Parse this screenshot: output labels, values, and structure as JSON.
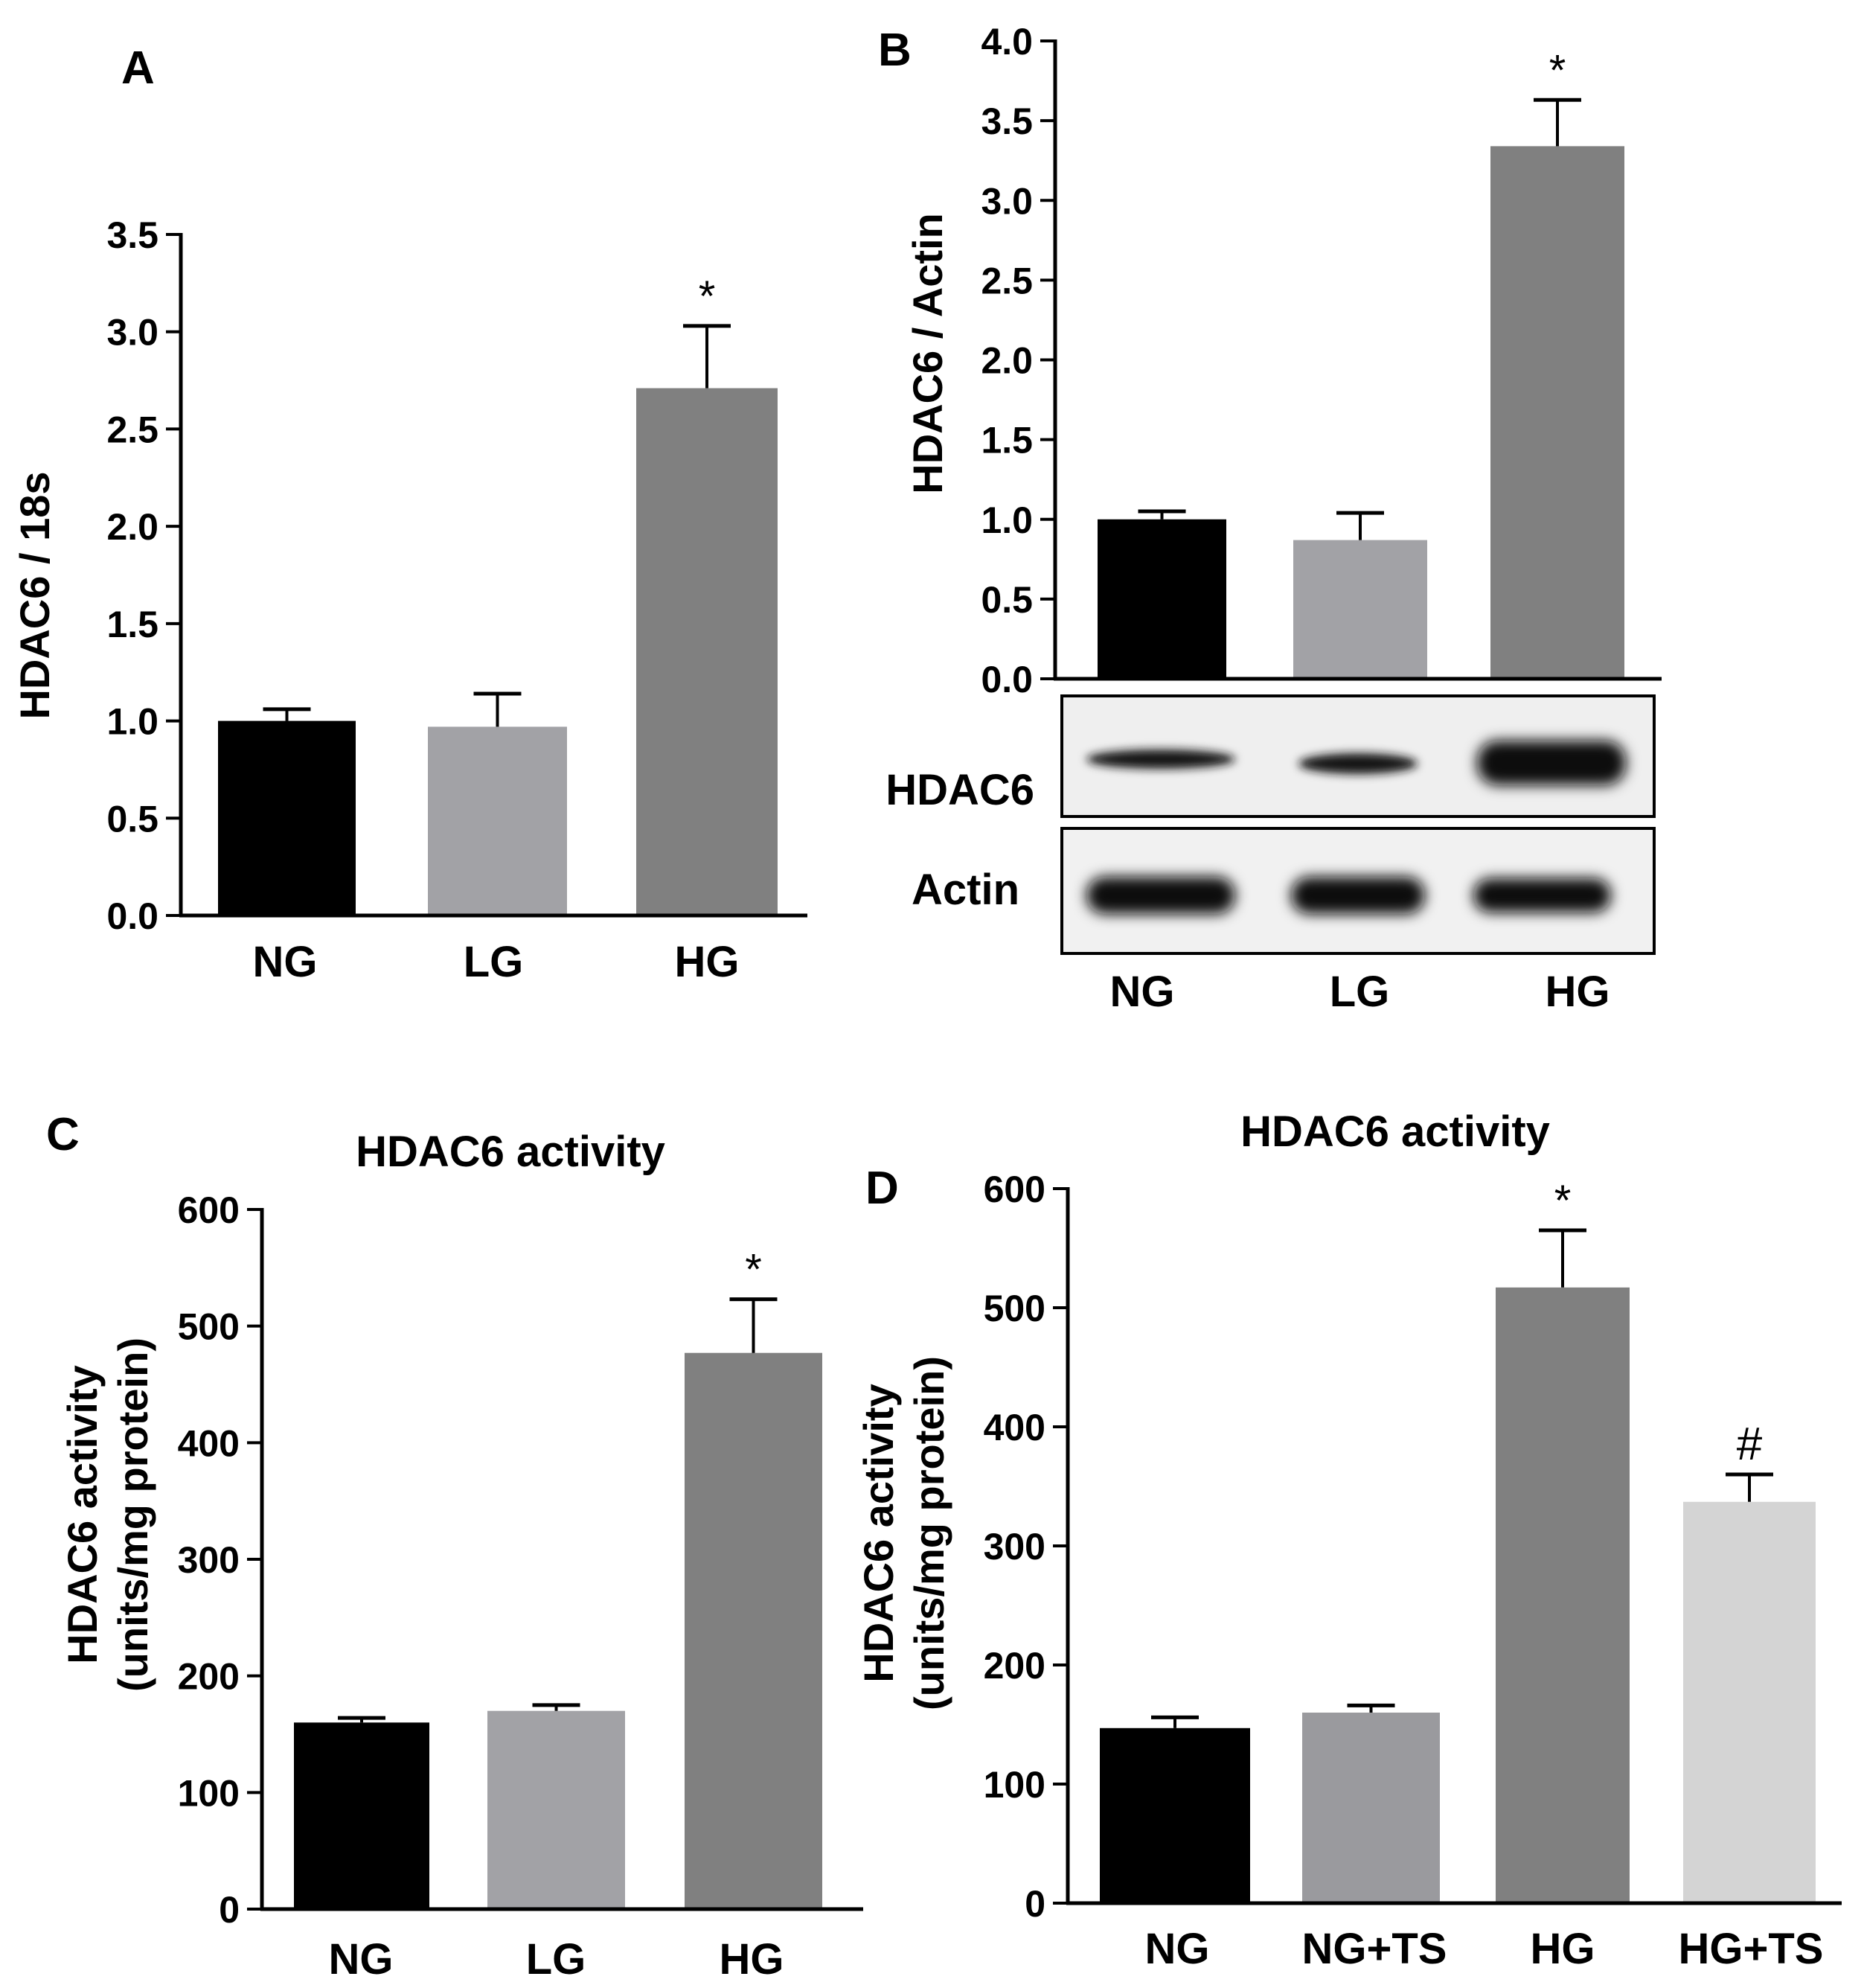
{
  "figure": {
    "colors": {
      "NG": "#000000",
      "LG": "#a2a2a6",
      "HG": "#808080",
      "NG+TS": "#9a9a9e",
      "HG+TS": "#d4d4d4"
    }
  },
  "chart_data": [
    {
      "panel": "A",
      "type": "bar",
      "title": "",
      "xlabel": "",
      "ylabel": "HDAC6 / 18s",
      "ylim": [
        0,
        3.5
      ],
      "yticks": [
        "0.0",
        "0.5",
        "1.0",
        "1.5",
        "2.0",
        "2.5",
        "3.0",
        "3.5"
      ],
      "categories": [
        "NG",
        "LG",
        "HG"
      ],
      "values": [
        1.0,
        0.97,
        2.71
      ],
      "errors": [
        0.06,
        0.17,
        0.32
      ],
      "annotations": [
        "",
        "",
        "*"
      ]
    },
    {
      "panel": "B",
      "type": "bar",
      "title": "",
      "xlabel": "",
      "ylabel": "HDAC6 / Actin",
      "ylim": [
        0,
        4.0
      ],
      "yticks": [
        "0.0",
        "0.5",
        "1.0",
        "1.5",
        "2.0",
        "2.5",
        "3.0",
        "3.5",
        "4.0"
      ],
      "categories": [
        "NG",
        "LG",
        "HG"
      ],
      "values": [
        1.0,
        0.87,
        3.34
      ],
      "errors": [
        0.05,
        0.17,
        0.29
      ],
      "annotations": [
        "",
        "",
        "*"
      ],
      "blot_labels": [
        "HDAC6",
        "Actin"
      ]
    },
    {
      "panel": "C",
      "type": "bar",
      "title": "HDAC6 activity",
      "xlabel": "",
      "ylabel": "HDAC6 activity",
      "ylabel2": "(units/mg protein)",
      "ylim": [
        0,
        600
      ],
      "yticks": [
        "0",
        "100",
        "200",
        "300",
        "400",
        "500",
        "600"
      ],
      "categories": [
        "NG",
        "LG",
        "HG"
      ],
      "values": [
        160,
        170,
        477
      ],
      "errors": [
        4,
        5,
        46
      ],
      "annotations": [
        "",
        "",
        "*"
      ]
    },
    {
      "panel": "D",
      "type": "bar",
      "title": "HDAC6 activity",
      "xlabel": "",
      "ylabel": "HDAC6 activity",
      "ylabel2": "(units/mg protein)",
      "ylim": [
        0,
        600
      ],
      "yticks": [
        "0",
        "100",
        "200",
        "300",
        "400",
        "500",
        "600"
      ],
      "categories": [
        "NG",
        "NG+TS",
        "HG",
        "HG+TS"
      ],
      "values": [
        147,
        160,
        517,
        337
      ],
      "errors": [
        9,
        6,
        48,
        23
      ],
      "annotations": [
        "",
        "",
        "*",
        "#"
      ]
    }
  ]
}
